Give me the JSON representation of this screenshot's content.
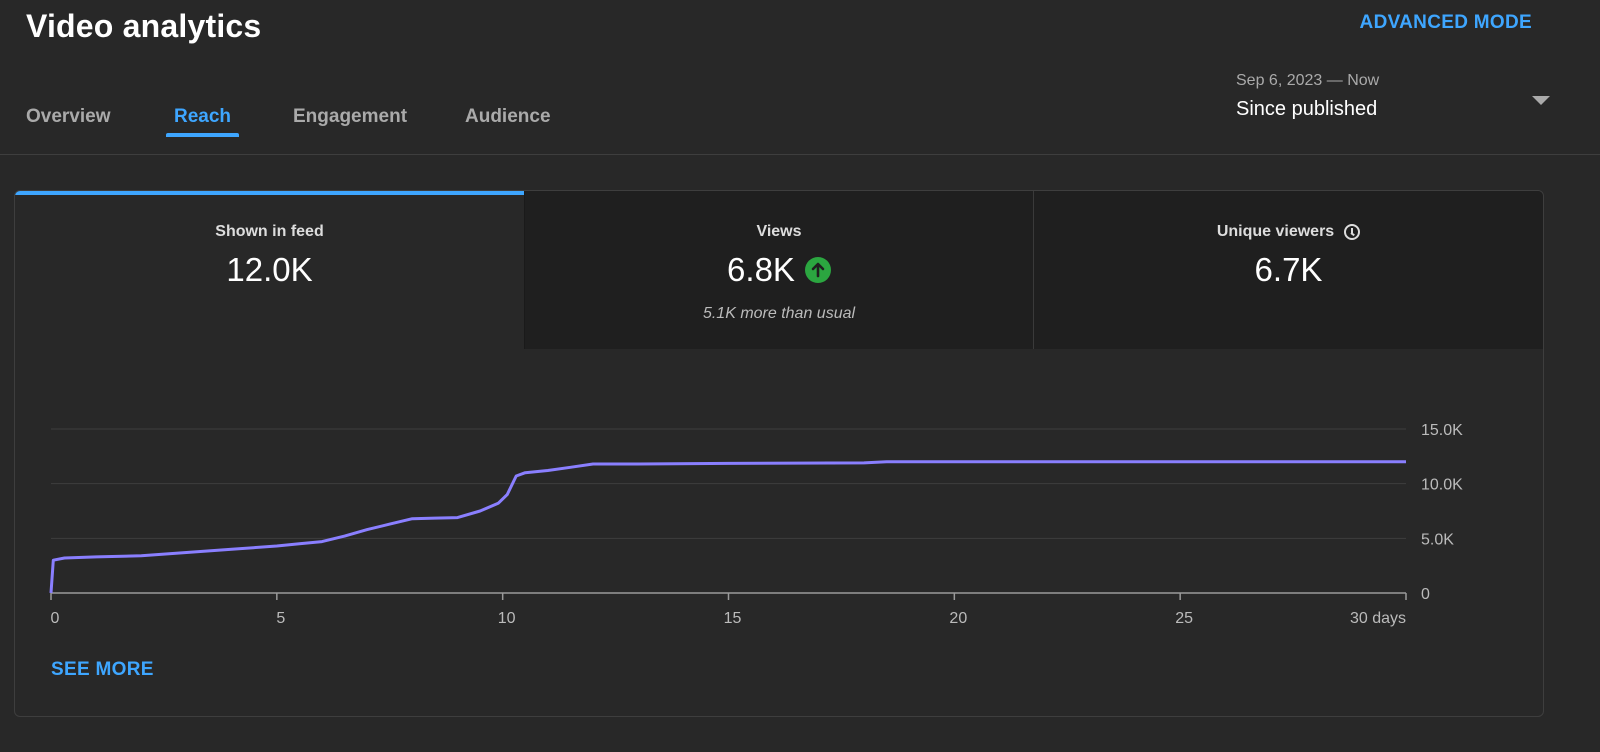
{
  "header": {
    "title": "Video analytics",
    "advanced_mode": "ADVANCED MODE"
  },
  "tabs": [
    {
      "label": "Overview",
      "active": false
    },
    {
      "label": "Reach",
      "active": true
    },
    {
      "label": "Engagement",
      "active": false
    },
    {
      "label": "Audience",
      "active": false
    }
  ],
  "date_range": {
    "range": "Sep 6, 2023 — Now",
    "label": "Since published"
  },
  "metrics": {
    "shown_in_feed": {
      "name": "Shown in feed",
      "value": "12.0K"
    },
    "views": {
      "name": "Views",
      "value": "6.8K",
      "note": "5.1K more than usual"
    },
    "unique_viewers": {
      "name": "Unique viewers",
      "value": "6.7K"
    }
  },
  "colors": {
    "accent": "#3ea6ff",
    "line": "#8a7fff",
    "positive": "#2ba640"
  },
  "chart_data": {
    "type": "line",
    "title": "Shown in feed",
    "xlabel": "",
    "ylabel": "",
    "xlim": [
      0,
      30
    ],
    "ylim": [
      0,
      15000
    ],
    "x_ticks": [
      0,
      5,
      10,
      15,
      20,
      25,
      30
    ],
    "x_tick_labels": [
      "0",
      "5",
      "10",
      "15",
      "20",
      "25",
      "30 days"
    ],
    "y_ticks": [
      0,
      5000,
      10000,
      15000
    ],
    "y_tick_labels": [
      "0",
      "5.0K",
      "10.0K",
      "15.0K"
    ],
    "grid": true,
    "series": [
      {
        "name": "Shown in feed",
        "x": [
          0,
          0.05,
          0.3,
          1,
          2,
          3,
          4,
          5,
          5.5,
          6,
          6.5,
          7,
          7.5,
          8,
          8.5,
          9,
          9.5,
          9.9,
          10.1,
          10.3,
          10.5,
          11,
          11.5,
          12,
          13,
          15,
          18,
          18.5,
          20,
          25,
          30
        ],
        "y": [
          0,
          3000,
          3200,
          3300,
          3400,
          3700,
          4000,
          4300,
          4500,
          4700,
          5200,
          5800,
          6300,
          6800,
          6850,
          6900,
          7500,
          8200,
          9000,
          10700,
          11000,
          11200,
          11500,
          11800,
          11800,
          11850,
          11900,
          12000,
          12000,
          12000,
          12000
        ]
      }
    ]
  },
  "see_more": "SEE MORE"
}
